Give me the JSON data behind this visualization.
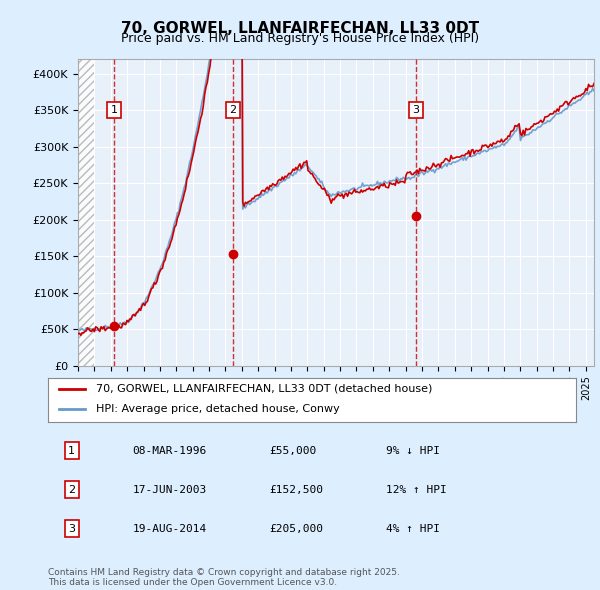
{
  "title": "70, GORWEL, LLANFAIRFECHAN, LL33 0DT",
  "subtitle": "Price paid vs. HM Land Registry's House Price Index (HPI)",
  "bg_color": "#ddeeff",
  "plot_bg_color": "#e8f0fa",
  "hatch_color": "#cccccc",
  "ylim": [
    0,
    420000
  ],
  "yticks": [
    0,
    50000,
    100000,
    150000,
    200000,
    250000,
    300000,
    350000,
    400000
  ],
  "ytick_labels": [
    "£0",
    "£50K",
    "£100K",
    "£150K",
    "£200K",
    "£250K",
    "£300K",
    "£350K",
    "£400K"
  ],
  "xmin": 1994,
  "xmax": 2025.5,
  "sale_dates": [
    1996.19,
    2003.46,
    2014.63
  ],
  "sale_prices": [
    55000,
    152500,
    205000
  ],
  "sale_labels": [
    "1",
    "2",
    "3"
  ],
  "legend_entries": [
    "70, GORWEL, LLANFAIRFECHAN, LL33 0DT (detached house)",
    "HPI: Average price, detached house, Conwy"
  ],
  "table_rows": [
    [
      "1",
      "08-MAR-1996",
      "£55,000",
      "9% ↓ HPI"
    ],
    [
      "2",
      "17-JUN-2003",
      "£152,500",
      "12% ↑ HPI"
    ],
    [
      "3",
      "19-AUG-2014",
      "£205,000",
      "4% ↑ HPI"
    ]
  ],
  "footnote": "Contains HM Land Registry data © Crown copyright and database right 2025.\nThis data is licensed under the Open Government Licence v3.0.",
  "hpi_color": "#6699cc",
  "price_color": "#cc0000",
  "dashed_line_color": "#cc0000"
}
